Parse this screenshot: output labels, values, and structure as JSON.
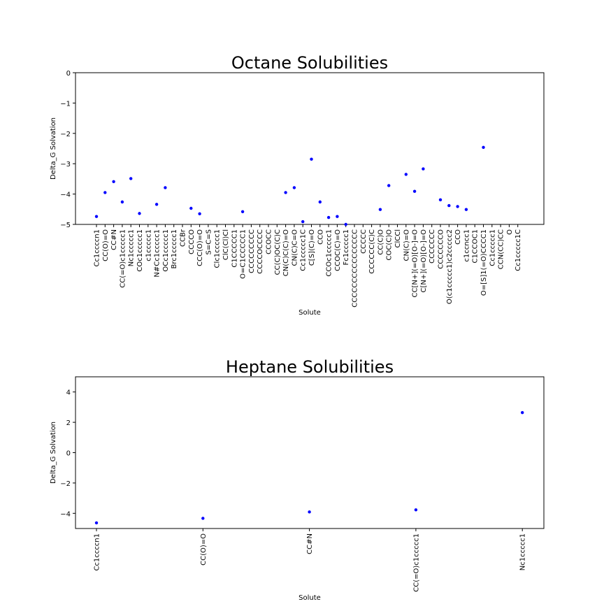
{
  "chart_data": [
    {
      "type": "scatter",
      "title": "Octane Solubilities",
      "xlabel": "Solute",
      "ylabel": "Delta_G Solvation",
      "ylim": [
        -5,
        0
      ],
      "yticks": [
        0,
        -1,
        -2,
        -3,
        -4,
        -5
      ],
      "ytick_labels": [
        "0",
        "−1",
        "−2",
        "−3",
        "−4",
        "−5"
      ],
      "marker_color": "#0000ff",
      "categories": [
        "Cc1ccccn1",
        "CC(O)=O",
        "CC#N",
        "CC(=O)c1ccccc1",
        "Nc1ccccc1",
        "COc1ccccc1",
        "c1ccccc1",
        "N#Cc1ccccc1",
        "OCc1ccccc1",
        "Brc1ccccc1",
        "CCBr",
        "CCCCO",
        "CCC(O)=O",
        "S=C=S",
        "Clc1ccccc1",
        "ClC(Cl)Cl",
        "C1CCCCC1",
        "O=C1CCCCC1",
        "CCCCCCCCC",
        "CCCCOCCCC",
        "CCOCC",
        "CC(C)OC(C)C",
        "CN(C)C(C)=O",
        "CN(C)C=O",
        "Cc1ccccc1C",
        "C[S](C)=O",
        "CCO",
        "CCOc1ccccc1",
        "CCOC(C)=O",
        "Fc1ccccc1",
        "CCCCCCCCCCCCCCCC",
        "CCCCC",
        "CCCCCC(C)C",
        "CC(C)O",
        "COC(C)O",
        "ClCCl",
        "CN(C)=O",
        "CC[N+](=O)[O-]=O",
        "C[N+](=O)[O-]=O",
        "CCCCCCC",
        "CCCCCCCO",
        "O(c1ccccc1)c2ccccc2",
        "CCO",
        "c1ccncc1",
        "C1CCOC1",
        "O=[S]1(=O)CCCC1",
        "Cc1ccccc1",
        "CCN(CC)CC",
        "O",
        "Cc1ccccc1C"
      ],
      "values": [
        -4.74,
        -3.95,
        -3.59,
        -4.26,
        -3.49,
        -4.64,
        null,
        -4.34,
        -3.79,
        null,
        null,
        -4.47,
        -4.65,
        null,
        null,
        null,
        null,
        -4.58,
        null,
        null,
        null,
        null,
        -3.95,
        -3.79,
        -4.91,
        -2.85,
        -4.26,
        -4.77,
        -4.74,
        -5.0,
        null,
        null,
        null,
        -4.51,
        -3.72,
        null,
        -3.35,
        -3.91,
        -3.17,
        null,
        -4.19,
        -4.38,
        -4.41,
        -4.51,
        null,
        -2.46,
        null,
        null,
        null,
        null
      ]
    },
    {
      "type": "scatter",
      "title": "Heptane Solubilities",
      "xlabel": "Solute",
      "ylabel": "Delta_G Solvation",
      "ylim": [
        -5,
        5
      ],
      "yticks": [
        4,
        2,
        0,
        -2,
        -4
      ],
      "ytick_labels": [
        "4",
        "2",
        "0",
        "−2",
        "−4"
      ],
      "marker_color": "#0000ff",
      "categories": [
        "Cc1ccccn1",
        "CC(O)=O",
        "CC#N",
        "CC(=O)c1ccccc1",
        "Nc1ccccc1"
      ],
      "values": [
        -4.63,
        -4.33,
        -3.91,
        -3.77,
        2.64
      ]
    }
  ]
}
